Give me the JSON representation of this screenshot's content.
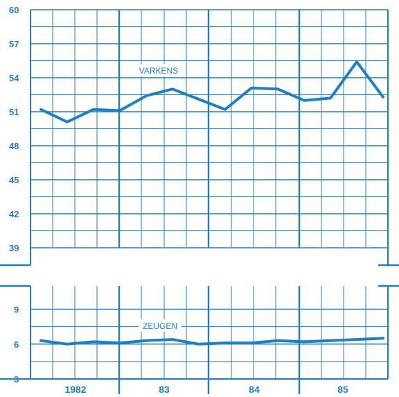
{
  "chart_data": [
    {
      "type": "line",
      "ylim": [
        39,
        60
      ],
      "y_ticks": [
        "60",
        "57",
        "54",
        "51",
        "48",
        "45",
        "42",
        "39"
      ],
      "x": [
        1982.0,
        1982.25,
        1982.5,
        1982.75,
        1983.0,
        1983.25,
        1983.5,
        1983.75,
        1984.0,
        1984.25,
        1984.5,
        1984.75,
        1985.0,
        1985.25
      ],
      "series": [
        {
          "name": "VARKENS",
          "values": [
            51.2,
            50.1,
            51.2,
            51.1,
            52.4,
            53.0,
            52.1,
            51.2,
            53.1,
            53.0,
            52.0,
            52.2,
            55.4,
            52.3
          ]
        }
      ]
    },
    {
      "type": "line",
      "ylim": [
        3,
        11
      ],
      "y_ticks": [
        "9",
        "6",
        "3"
      ],
      "x_ticks": [
        "1982",
        "83",
        "84",
        "85"
      ],
      "x": [
        1982.0,
        1982.25,
        1982.5,
        1982.75,
        1983.0,
        1983.25,
        1983.5,
        1983.75,
        1984.0,
        1984.25,
        1984.5,
        1984.75,
        1985.0,
        1985.25
      ],
      "series": [
        {
          "name": "ZEUGEN",
          "values": [
            6.3,
            6.0,
            6.2,
            6.1,
            6.3,
            6.4,
            6.0,
            6.1,
            6.1,
            6.3,
            6.2,
            6.3,
            6.4,
            6.5
          ]
        }
      ]
    }
  ],
  "colors": {
    "ink": "#1f7fc0",
    "background": "#ffffff"
  }
}
